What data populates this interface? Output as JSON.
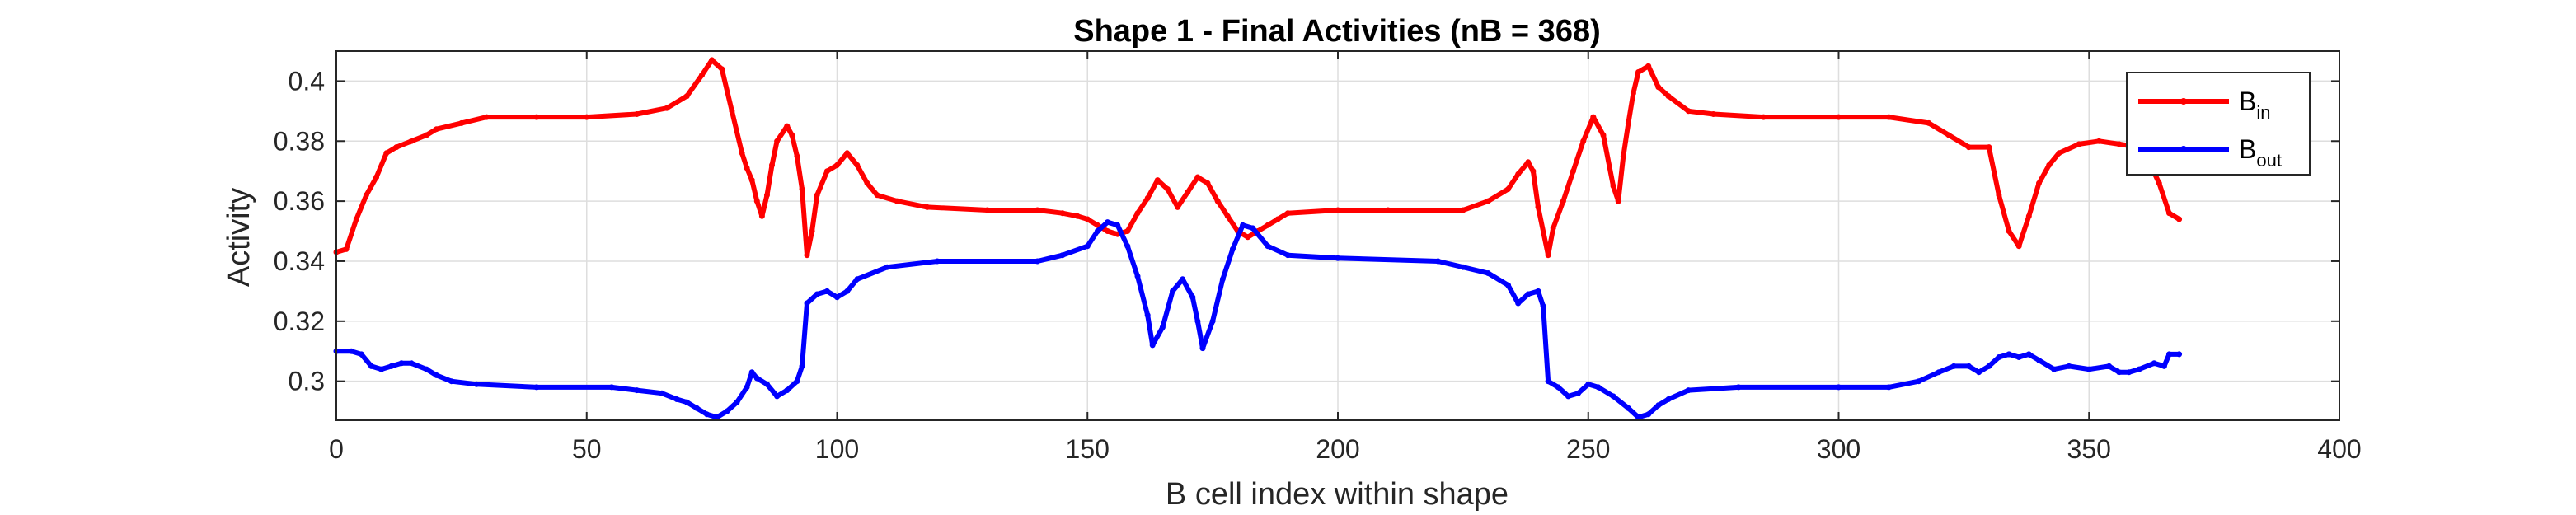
{
  "chart_data": {
    "type": "line",
    "title": "Shape 1 - Final Activities (nB = 368)",
    "xlabel": "B cell index within shape",
    "ylabel": "Activity",
    "xlim": [
      0,
      400
    ],
    "ylim": [
      0.287,
      0.41
    ],
    "xticks": [
      0,
      50,
      100,
      150,
      200,
      250,
      300,
      350,
      400
    ],
    "yticks": [
      0.3,
      0.32,
      0.34,
      0.36,
      0.38,
      0.4
    ],
    "grid": true,
    "legend": {
      "position": "top-right"
    },
    "series": [
      {
        "name": "B_in",
        "label_main": "B",
        "label_sub": "in",
        "color": "#ff0000",
        "points": [
          [
            0,
            0.343
          ],
          [
            2,
            0.344
          ],
          [
            4,
            0.354
          ],
          [
            6,
            0.362
          ],
          [
            8,
            0.368
          ],
          [
            10,
            0.376
          ],
          [
            12,
            0.378
          ],
          [
            15,
            0.38
          ],
          [
            18,
            0.382
          ],
          [
            20,
            0.384
          ],
          [
            25,
            0.386
          ],
          [
            30,
            0.388
          ],
          [
            40,
            0.388
          ],
          [
            50,
            0.388
          ],
          [
            60,
            0.389
          ],
          [
            66,
            0.391
          ],
          [
            70,
            0.395
          ],
          [
            73,
            0.402
          ],
          [
            75,
            0.407
          ],
          [
            77,
            0.404
          ],
          [
            79,
            0.39
          ],
          [
            81,
            0.376
          ],
          [
            82,
            0.371
          ],
          [
            83,
            0.367
          ],
          [
            84,
            0.36
          ],
          [
            85,
            0.355
          ],
          [
            86,
            0.362
          ],
          [
            87,
            0.372
          ],
          [
            88,
            0.38
          ],
          [
            90,
            0.385
          ],
          [
            91,
            0.382
          ],
          [
            92,
            0.375
          ],
          [
            93,
            0.364
          ],
          [
            94,
            0.342
          ],
          [
            95,
            0.35
          ],
          [
            96,
            0.362
          ],
          [
            98,
            0.37
          ],
          [
            100,
            0.372
          ],
          [
            102,
            0.376
          ],
          [
            104,
            0.372
          ],
          [
            106,
            0.366
          ],
          [
            108,
            0.362
          ],
          [
            112,
            0.36
          ],
          [
            118,
            0.358
          ],
          [
            130,
            0.357
          ],
          [
            140,
            0.357
          ],
          [
            145,
            0.356
          ],
          [
            148,
            0.355
          ],
          [
            150,
            0.354
          ],
          [
            152,
            0.352
          ],
          [
            154,
            0.35
          ],
          [
            156,
            0.349
          ],
          [
            158,
            0.35
          ],
          [
            160,
            0.356
          ],
          [
            162,
            0.361
          ],
          [
            164,
            0.367
          ],
          [
            166,
            0.364
          ],
          [
            168,
            0.358
          ],
          [
            170,
            0.363
          ],
          [
            172,
            0.368
          ],
          [
            174,
            0.366
          ],
          [
            176,
            0.36
          ],
          [
            178,
            0.355
          ],
          [
            180,
            0.35
          ],
          [
            182,
            0.348
          ],
          [
            184,
            0.35
          ],
          [
            186,
            0.352
          ],
          [
            188,
            0.354
          ],
          [
            190,
            0.356
          ],
          [
            200,
            0.357
          ],
          [
            210,
            0.357
          ],
          [
            225,
            0.357
          ],
          [
            230,
            0.36
          ],
          [
            234,
            0.364
          ],
          [
            236,
            0.369
          ],
          [
            238,
            0.373
          ],
          [
            239,
            0.37
          ],
          [
            240,
            0.358
          ],
          [
            242,
            0.342
          ],
          [
            243,
            0.351
          ],
          [
            245,
            0.36
          ],
          [
            247,
            0.37
          ],
          [
            249,
            0.38
          ],
          [
            251,
            0.388
          ],
          [
            253,
            0.382
          ],
          [
            255,
            0.365
          ],
          [
            256,
            0.36
          ],
          [
            257,
            0.375
          ],
          [
            258,
            0.386
          ],
          [
            259,
            0.396
          ],
          [
            260,
            0.403
          ],
          [
            262,
            0.405
          ],
          [
            264,
            0.398
          ],
          [
            266,
            0.395
          ],
          [
            270,
            0.39
          ],
          [
            275,
            0.389
          ],
          [
            285,
            0.388
          ],
          [
            300,
            0.388
          ],
          [
            310,
            0.388
          ],
          [
            318,
            0.386
          ],
          [
            322,
            0.382
          ],
          [
            326,
            0.378
          ],
          [
            330,
            0.378
          ],
          [
            332,
            0.362
          ],
          [
            334,
            0.35
          ],
          [
            336,
            0.345
          ],
          [
            338,
            0.355
          ],
          [
            340,
            0.366
          ],
          [
            342,
            0.372
          ],
          [
            344,
            0.376
          ],
          [
            348,
            0.379
          ],
          [
            352,
            0.38
          ],
          [
            356,
            0.379
          ],
          [
            360,
            0.378
          ],
          [
            362,
            0.373
          ],
          [
            364,
            0.366
          ],
          [
            366,
            0.356
          ],
          [
            368,
            0.354
          ]
        ]
      },
      {
        "name": "B_out",
        "label_main": "B",
        "label_sub": "out",
        "color": "#0000ff",
        "points": [
          [
            0,
            0.31
          ],
          [
            3,
            0.31
          ],
          [
            5,
            0.309
          ],
          [
            7,
            0.305
          ],
          [
            9,
            0.304
          ],
          [
            11,
            0.305
          ],
          [
            13,
            0.306
          ],
          [
            15,
            0.306
          ],
          [
            18,
            0.304
          ],
          [
            20,
            0.302
          ],
          [
            23,
            0.3
          ],
          [
            28,
            0.299
          ],
          [
            40,
            0.298
          ],
          [
            55,
            0.298
          ],
          [
            60,
            0.297
          ],
          [
            65,
            0.296
          ],
          [
            68,
            0.294
          ],
          [
            70,
            0.293
          ],
          [
            72,
            0.291
          ],
          [
            74,
            0.289
          ],
          [
            76,
            0.288
          ],
          [
            78,
            0.29
          ],
          [
            80,
            0.293
          ],
          [
            82,
            0.298
          ],
          [
            83,
            0.303
          ],
          [
            84,
            0.301
          ],
          [
            86,
            0.299
          ],
          [
            88,
            0.295
          ],
          [
            90,
            0.297
          ],
          [
            92,
            0.3
          ],
          [
            93,
            0.305
          ],
          [
            94,
            0.326
          ],
          [
            96,
            0.329
          ],
          [
            98,
            0.33
          ],
          [
            100,
            0.328
          ],
          [
            102,
            0.33
          ],
          [
            104,
            0.334
          ],
          [
            110,
            0.338
          ],
          [
            120,
            0.34
          ],
          [
            140,
            0.34
          ],
          [
            145,
            0.342
          ],
          [
            150,
            0.345
          ],
          [
            152,
            0.35
          ],
          [
            154,
            0.353
          ],
          [
            156,
            0.352
          ],
          [
            158,
            0.345
          ],
          [
            160,
            0.335
          ],
          [
            162,
            0.322
          ],
          [
            163,
            0.312
          ],
          [
            165,
            0.318
          ],
          [
            167,
            0.33
          ],
          [
            169,
            0.334
          ],
          [
            171,
            0.328
          ],
          [
            172,
            0.32
          ],
          [
            173,
            0.311
          ],
          [
            175,
            0.32
          ],
          [
            177,
            0.334
          ],
          [
            179,
            0.344
          ],
          [
            181,
            0.352
          ],
          [
            183,
            0.351
          ],
          [
            186,
            0.345
          ],
          [
            190,
            0.342
          ],
          [
            200,
            0.341
          ],
          [
            220,
            0.34
          ],
          [
            225,
            0.338
          ],
          [
            230,
            0.336
          ],
          [
            234,
            0.332
          ],
          [
            236,
            0.326
          ],
          [
            238,
            0.329
          ],
          [
            240,
            0.33
          ],
          [
            241,
            0.325
          ],
          [
            242,
            0.3
          ],
          [
            244,
            0.298
          ],
          [
            246,
            0.295
          ],
          [
            248,
            0.296
          ],
          [
            250,
            0.299
          ],
          [
            252,
            0.298
          ],
          [
            255,
            0.295
          ],
          [
            258,
            0.291
          ],
          [
            260,
            0.288
          ],
          [
            262,
            0.289
          ],
          [
            264,
            0.292
          ],
          [
            266,
            0.294
          ],
          [
            270,
            0.297
          ],
          [
            280,
            0.298
          ],
          [
            300,
            0.298
          ],
          [
            310,
            0.298
          ],
          [
            316,
            0.3
          ],
          [
            320,
            0.303
          ],
          [
            323,
            0.305
          ],
          [
            326,
            0.305
          ],
          [
            328,
            0.303
          ],
          [
            330,
            0.305
          ],
          [
            332,
            0.308
          ],
          [
            334,
            0.309
          ],
          [
            336,
            0.308
          ],
          [
            338,
            0.309
          ],
          [
            340,
            0.307
          ],
          [
            343,
            0.304
          ],
          [
            346,
            0.305
          ],
          [
            350,
            0.304
          ],
          [
            354,
            0.305
          ],
          [
            356,
            0.303
          ],
          [
            358,
            0.303
          ],
          [
            360,
            0.304
          ],
          [
            363,
            0.306
          ],
          [
            365,
            0.305
          ],
          [
            366,
            0.309
          ],
          [
            368,
            0.309
          ]
        ]
      }
    ]
  }
}
